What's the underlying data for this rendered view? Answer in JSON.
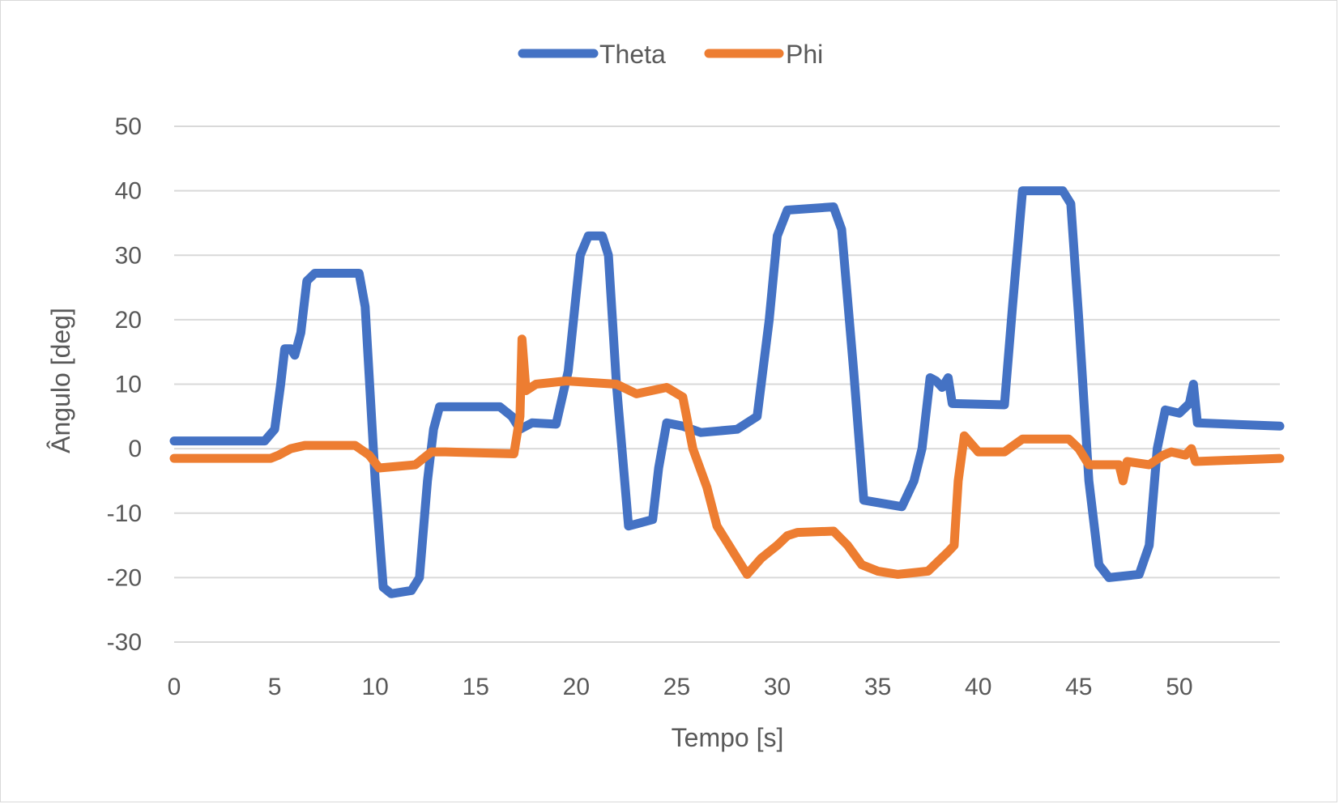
{
  "chart_data": {
    "type": "line",
    "xlabel": "Tempo [s]",
    "ylabel": "Ângulo [deg]",
    "xlim": [
      0,
      55
    ],
    "ylim": [
      -30,
      50
    ],
    "x_ticks": [
      0,
      5,
      10,
      15,
      20,
      25,
      30,
      35,
      40,
      45,
      50
    ],
    "y_ticks": [
      50,
      40,
      30,
      20,
      10,
      0,
      -10,
      -20,
      -30
    ],
    "x_tick_labels": [
      "0",
      "5",
      "10",
      "15",
      "20",
      "25",
      "30",
      "35",
      "40",
      "45",
      "50"
    ],
    "y_tick_labels": [
      "50",
      "40",
      "30",
      "20",
      "10",
      "0",
      "-10",
      "-20",
      "-30"
    ],
    "grid": true,
    "legend_position": "top",
    "series": [
      {
        "name": "Theta",
        "color": "#4472C4",
        "points": [
          [
            0,
            1.2
          ],
          [
            4.5,
            1.2
          ],
          [
            5.0,
            3
          ],
          [
            5.3,
            10
          ],
          [
            5.5,
            15.5
          ],
          [
            5.8,
            15.5
          ],
          [
            6.0,
            14.5
          ],
          [
            6.3,
            18
          ],
          [
            6.6,
            26
          ],
          [
            7.0,
            27.2
          ],
          [
            9.2,
            27.2
          ],
          [
            9.5,
            22
          ],
          [
            10.0,
            -5
          ],
          [
            10.4,
            -21.5
          ],
          [
            10.8,
            -22.5
          ],
          [
            11.8,
            -22
          ],
          [
            12.2,
            -20
          ],
          [
            12.6,
            -5
          ],
          [
            12.9,
            3
          ],
          [
            13.2,
            6.5
          ],
          [
            16.2,
            6.5
          ],
          [
            16.8,
            5
          ],
          [
            17.2,
            3
          ],
          [
            17.8,
            4
          ],
          [
            19.0,
            3.8
          ],
          [
            19.6,
            12
          ],
          [
            20.2,
            30
          ],
          [
            20.6,
            33
          ],
          [
            21.3,
            33
          ],
          [
            21.6,
            30
          ],
          [
            22.0,
            10
          ],
          [
            22.6,
            -12
          ],
          [
            23.8,
            -11
          ],
          [
            24.1,
            -3
          ],
          [
            24.5,
            4
          ],
          [
            25.3,
            3.5
          ],
          [
            26.2,
            2.5
          ],
          [
            28.0,
            3
          ],
          [
            29.0,
            5
          ],
          [
            29.6,
            20
          ],
          [
            30.0,
            33
          ],
          [
            30.5,
            37
          ],
          [
            32.8,
            37.5
          ],
          [
            33.2,
            34
          ],
          [
            33.8,
            12
          ],
          [
            34.3,
            -8
          ],
          [
            36.2,
            -9
          ],
          [
            36.8,
            -5
          ],
          [
            37.2,
            0
          ],
          [
            37.6,
            11
          ],
          [
            37.9,
            10.5
          ],
          [
            38.2,
            9.5
          ],
          [
            38.5,
            11
          ],
          [
            38.7,
            7
          ],
          [
            41.3,
            6.8
          ],
          [
            41.7,
            22
          ],
          [
            42.2,
            40
          ],
          [
            44.2,
            40
          ],
          [
            44.6,
            38
          ],
          [
            45.0,
            20
          ],
          [
            45.5,
            -5
          ],
          [
            46.0,
            -18
          ],
          [
            46.5,
            -20
          ],
          [
            48.0,
            -19.5
          ],
          [
            48.5,
            -15
          ],
          [
            48.9,
            0
          ],
          [
            49.3,
            6
          ],
          [
            50.0,
            5.5
          ],
          [
            50.5,
            7
          ],
          [
            50.7,
            10
          ],
          [
            50.9,
            4
          ],
          [
            55,
            3.5
          ]
        ]
      },
      {
        "name": "Phi",
        "color": "#ED7D31",
        "points": [
          [
            0,
            -1.5
          ],
          [
            4.8,
            -1.5
          ],
          [
            5.2,
            -1
          ],
          [
            5.8,
            0
          ],
          [
            6.5,
            0.5
          ],
          [
            9.0,
            0.5
          ],
          [
            9.7,
            -1
          ],
          [
            10.2,
            -3
          ],
          [
            12.0,
            -2.5
          ],
          [
            12.8,
            -0.5
          ],
          [
            13.5,
            -0.5
          ],
          [
            16.9,
            -0.8
          ],
          [
            17.2,
            5
          ],
          [
            17.3,
            17
          ],
          [
            17.5,
            9
          ],
          [
            18.0,
            10
          ],
          [
            19.5,
            10.5
          ],
          [
            22.0,
            10
          ],
          [
            23.0,
            8.5
          ],
          [
            24.5,
            9.5
          ],
          [
            25.3,
            8
          ],
          [
            25.8,
            0
          ],
          [
            26.5,
            -6
          ],
          [
            27.0,
            -12
          ],
          [
            27.6,
            -15
          ],
          [
            28.0,
            -17
          ],
          [
            28.5,
            -19.5
          ],
          [
            29.2,
            -17
          ],
          [
            30.0,
            -15
          ],
          [
            30.5,
            -13.5
          ],
          [
            31.0,
            -13
          ],
          [
            32.8,
            -12.8
          ],
          [
            33.5,
            -15
          ],
          [
            34.2,
            -18
          ],
          [
            35.0,
            -19
          ],
          [
            36.0,
            -19.5
          ],
          [
            37.5,
            -19
          ],
          [
            38.5,
            -16
          ],
          [
            38.8,
            -15
          ],
          [
            39.0,
            -5
          ],
          [
            39.3,
            2
          ],
          [
            40.0,
            -0.5
          ],
          [
            41.3,
            -0.5
          ],
          [
            42.2,
            1.5
          ],
          [
            44.5,
            1.5
          ],
          [
            45.0,
            0
          ],
          [
            45.5,
            -2.5
          ],
          [
            47.0,
            -2.5
          ],
          [
            47.2,
            -5
          ],
          [
            47.4,
            -2
          ],
          [
            48.5,
            -2.5
          ],
          [
            49.2,
            -1
          ],
          [
            49.6,
            -0.5
          ],
          [
            50.3,
            -1
          ],
          [
            50.6,
            0
          ],
          [
            50.8,
            -2
          ],
          [
            55,
            -1.5
          ]
        ]
      }
    ]
  }
}
